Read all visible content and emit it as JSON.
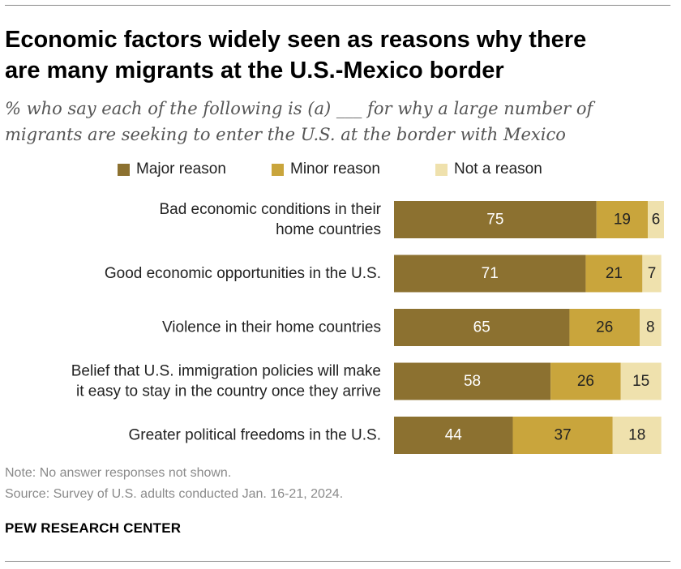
{
  "header": {
    "title_line1": "Economic factors widely seen as reasons why there",
    "title_line2": "are many migrants at the U.S.-Mexico border",
    "subtitle_line1": "% who say each of the following is (a) ___ for why a large number of",
    "subtitle_line2": "migrants are seeking to enter the U.S. at the border with Mexico"
  },
  "chart_data": {
    "type": "bar",
    "orientation": "horizontal",
    "stacked": true,
    "categories": [
      [
        "Bad economic conditions in their",
        "home countries"
      ],
      [
        "Good economic opportunities in the U.S."
      ],
      [
        "Violence in their home countries"
      ],
      [
        "Belief that U.S. immigration policies will make",
        "it easy to stay in the country once they arrive"
      ],
      [
        "Greater political freedoms in the U.S."
      ]
    ],
    "series": [
      {
        "name": "Major reason",
        "color": "#8c7130",
        "label_color": "#ffffff",
        "values": [
          75,
          71,
          65,
          58,
          44
        ]
      },
      {
        "name": "Minor reason",
        "color": "#c9a53c",
        "label_color": "#222222",
        "values": [
          19,
          21,
          26,
          26,
          37
        ]
      },
      {
        "name": "Not a reason",
        "color": "#efe1ad",
        "label_color": "#222222",
        "values": [
          6,
          7,
          8,
          15,
          18
        ]
      }
    ],
    "xlim": [
      0,
      100
    ],
    "grid": false,
    "legend_position": "top"
  },
  "footer": {
    "note": "Note: No answer responses not shown.",
    "source": "Source: Survey of U.S. adults conducted Jan. 16-21, 2024.",
    "brand": "PEW RESEARCH CENTER"
  }
}
